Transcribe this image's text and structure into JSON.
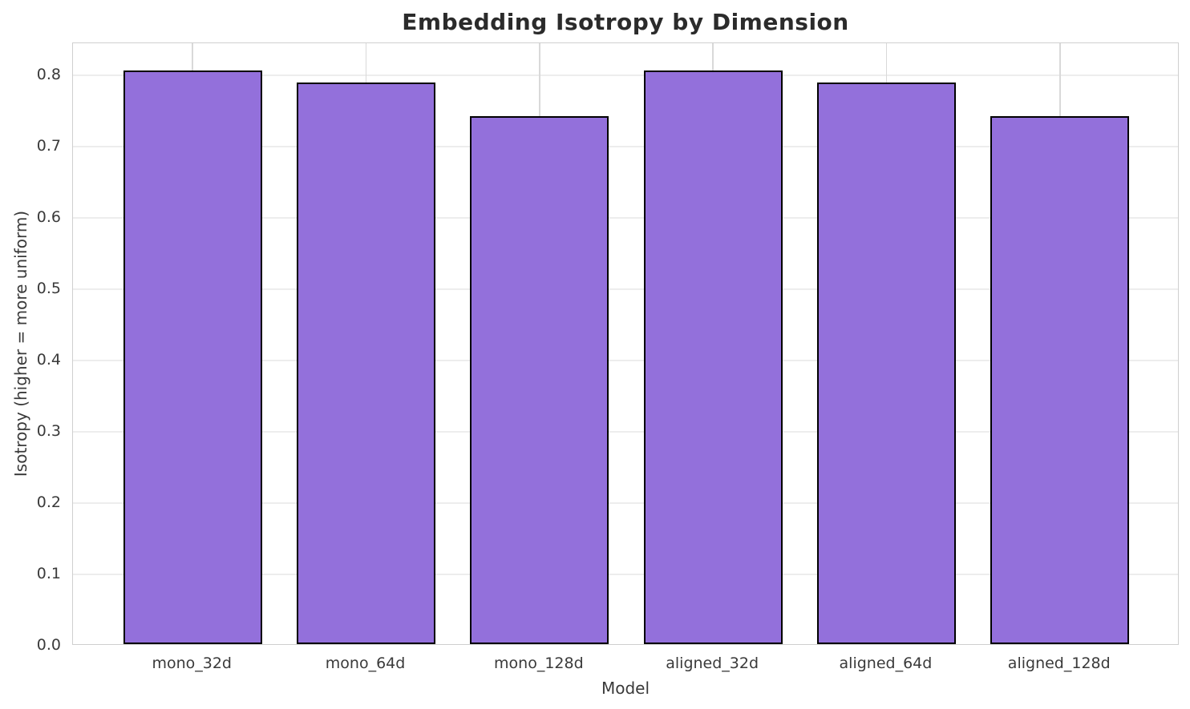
{
  "chart_data": {
    "type": "bar",
    "title": "Embedding Isotropy by Dimension",
    "xlabel": "Model",
    "ylabel": "Isotropy (higher = more uniform)",
    "categories": [
      "mono_32d",
      "mono_64d",
      "mono_128d",
      "aligned_32d",
      "aligned_64d",
      "aligned_128d"
    ],
    "values": [
      0.805,
      0.788,
      0.74,
      0.805,
      0.788,
      0.74
    ],
    "ylim": [
      0,
      0.845
    ],
    "yticks": [
      0.0,
      0.1,
      0.2,
      0.3,
      0.4,
      0.5,
      0.6,
      0.7,
      0.8
    ],
    "ytick_labels": [
      "0.0",
      "0.1",
      "0.2",
      "0.3",
      "0.4",
      "0.5",
      "0.6",
      "0.7",
      "0.8"
    ],
    "grid": "on",
    "legend": "none",
    "colors": {
      "bar_fill": "#9370DB",
      "bar_edge": "#000000",
      "grid_horizontal": "#ededed",
      "grid_vertical": "#d9d9d9",
      "spine": "#cfcfcf",
      "background": "#ffffff",
      "title_text": "#2b2b2b",
      "tick_text": "#3a3a3a"
    }
  }
}
